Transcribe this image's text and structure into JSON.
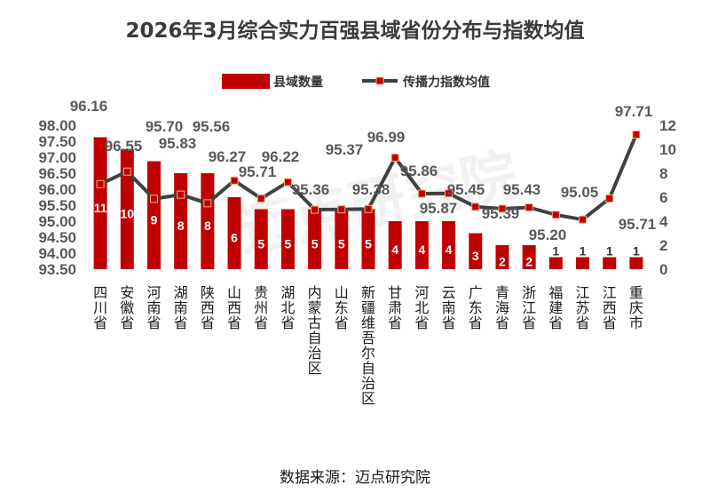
{
  "chart_data": {
    "type": "bar",
    "title": "2026年3月综合实力百强县域省份分布与指数均值",
    "categories": [
      "四川省",
      "安徽省",
      "河南省",
      "湖南省",
      "陕西省",
      "山西省",
      "贵州省",
      "湖北省",
      "内蒙古自治区",
      "山东省",
      "新疆维吾尔自治区",
      "甘肃省",
      "河北省",
      "云南省",
      "广东省",
      "青海省",
      "浙江省",
      "福建省",
      "江苏省",
      "江西省",
      "重庆市"
    ],
    "series": [
      {
        "name": "县域数量",
        "type": "bar",
        "axis": "right",
        "values": [
          11,
          10,
          9,
          8,
          8,
          6,
          5,
          5,
          5,
          5,
          5,
          4,
          4,
          4,
          3,
          2,
          2,
          1,
          1,
          1,
          1
        ]
      },
      {
        "name": "传播力指数均值",
        "type": "line",
        "axis": "left",
        "values": [
          96.16,
          96.55,
          95.7,
          95.83,
          95.56,
          96.27,
          95.71,
          96.22,
          95.36,
          95.37,
          95.38,
          96.99,
          95.86,
          95.87,
          95.45,
          95.39,
          95.43,
          95.2,
          95.05,
          95.71,
          97.71
        ]
      }
    ],
    "left_axis": {
      "min": 93.5,
      "max": 98.0,
      "step": 0.5,
      "ticks": [
        "93.50",
        "94.00",
        "94.50",
        "95.00",
        "95.50",
        "96.00",
        "96.50",
        "97.00",
        "97.50",
        "98.00"
      ]
    },
    "right_axis": {
      "min": 0,
      "max": 12,
      "step": 2,
      "ticks": [
        "0",
        "2",
        "4",
        "6",
        "8",
        "10",
        "12"
      ]
    },
    "legend": {
      "position": "top-right"
    },
    "colors": {
      "bar": "#c00000",
      "line": "#404040",
      "marker_fill": "#c00000",
      "marker_stroke": "#f4b183"
    }
  },
  "source_text": "数据来源：迈点研究院",
  "watermark_text": "迈点研究院"
}
